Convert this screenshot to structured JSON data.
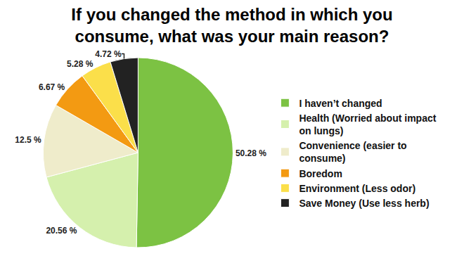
{
  "chart_data": {
    "type": "pie",
    "title": "If you changed the method in which you consume, what was your main reason?",
    "categories": [
      "I haven’t changed",
      "Health (Worried about impact on lungs)",
      "Convenience (easier to consume)",
      "Boredom",
      "Environment (Less odor)",
      "Save Money (Use less herb)"
    ],
    "values": [
      50.28,
      20.56,
      12.5,
      6.67,
      5.28,
      4.72
    ],
    "value_labels": [
      "50.28 %",
      "20.56 %",
      "12.5 %",
      "6.67 %",
      "5.28 %",
      "4.72 %"
    ],
    "colors": [
      "#7cc243",
      "#d5f0ad",
      "#efeccb",
      "#f39a12",
      "#fbdf4a",
      "#222222"
    ],
    "data_labels": true,
    "legend": "right"
  }
}
